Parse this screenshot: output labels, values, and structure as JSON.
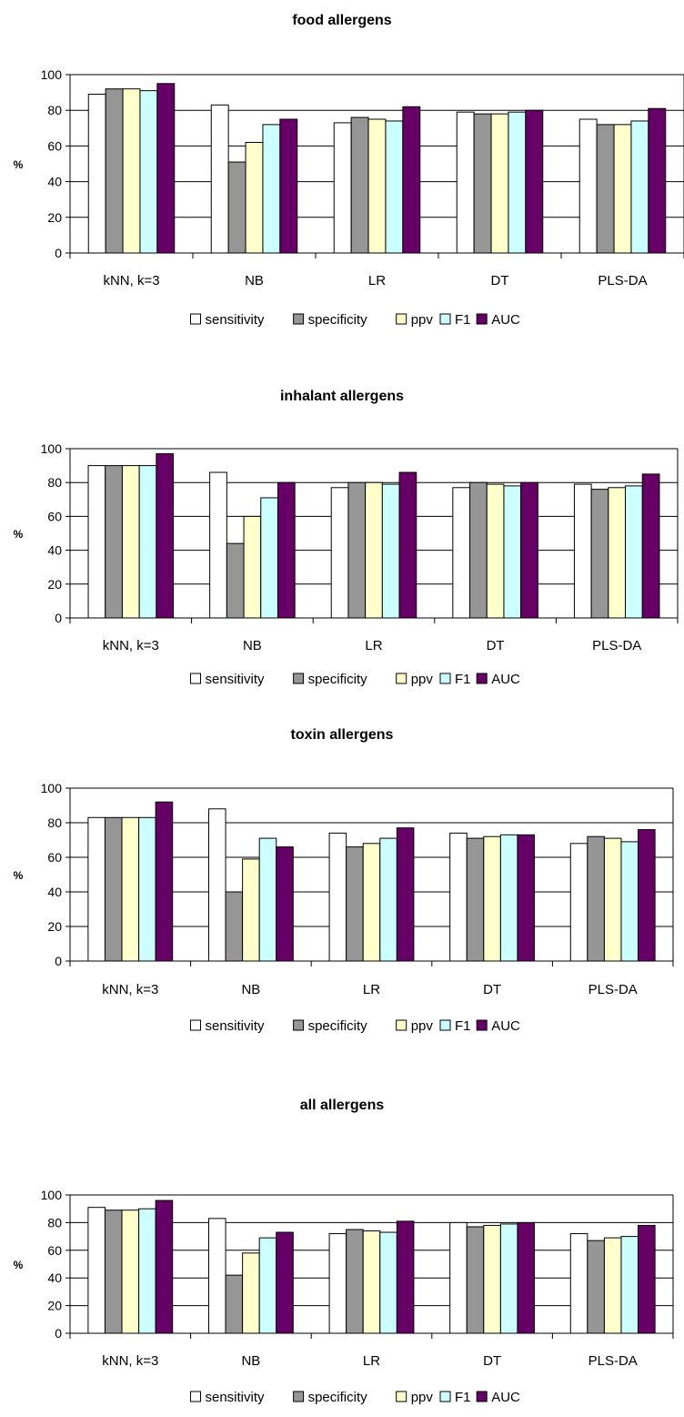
{
  "chart_data": [
    {
      "type": "bar",
      "title": "food allergens",
      "ylabel": "%",
      "ylim": [
        0,
        100
      ],
      "yticks": [
        0,
        20,
        40,
        60,
        80,
        100
      ],
      "categories": [
        "kNN, k=3",
        "NB",
        "LR",
        "DT",
        "PLS-DA"
      ],
      "series": [
        {
          "name": "sensitivity",
          "color": "#ffffff",
          "values": [
            89,
            83,
            73,
            79,
            75
          ]
        },
        {
          "name": "specificity",
          "color": "#969696",
          "values": [
            92,
            51,
            76,
            78,
            72
          ]
        },
        {
          "name": "ppv",
          "color": "#ffffcc",
          "values": [
            92,
            62,
            75,
            78,
            72
          ]
        },
        {
          "name": "F1",
          "color": "#ccffff",
          "values": [
            91,
            72,
            74,
            79,
            74
          ]
        },
        {
          "name": "AUC",
          "color": "#660066",
          "values": [
            95,
            75,
            82,
            80,
            81
          ]
        }
      ],
      "grid": true,
      "legend": "bottom"
    },
    {
      "type": "bar",
      "title": "inhalant allergens",
      "ylabel": "%",
      "ylim": [
        0,
        100
      ],
      "yticks": [
        0,
        20,
        40,
        60,
        80,
        100
      ],
      "categories": [
        "kNN, k=3",
        "NB",
        "LR",
        "DT",
        "PLS-DA"
      ],
      "series": [
        {
          "name": "sensitivity",
          "color": "#ffffff",
          "values": [
            90,
            86,
            77,
            77,
            79
          ]
        },
        {
          "name": "specificity",
          "color": "#969696",
          "values": [
            90,
            44,
            80,
            80,
            76
          ]
        },
        {
          "name": "ppv",
          "color": "#ffffcc",
          "values": [
            90,
            60,
            80,
            79,
            77
          ]
        },
        {
          "name": "F1",
          "color": "#ccffff",
          "values": [
            90,
            71,
            79,
            78,
            78
          ]
        },
        {
          "name": "AUC",
          "color": "#660066",
          "values": [
            97,
            80,
            86,
            80,
            85
          ]
        }
      ],
      "grid": true,
      "legend": "bottom"
    },
    {
      "type": "bar",
      "title": "toxin allergens",
      "ylabel": "%",
      "ylim": [
        0,
        100
      ],
      "yticks": [
        0,
        20,
        40,
        60,
        80,
        100
      ],
      "categories": [
        "kNN, k=3",
        "NB",
        "LR",
        "DT",
        "PLS-DA"
      ],
      "series": [
        {
          "name": "sensitivity",
          "color": "#ffffff",
          "values": [
            83,
            88,
            74,
            74,
            68
          ]
        },
        {
          "name": "specificity",
          "color": "#969696",
          "values": [
            83,
            40,
            66,
            71,
            72
          ]
        },
        {
          "name": "ppv",
          "color": "#ffffcc",
          "values": [
            83,
            59,
            68,
            72,
            71
          ]
        },
        {
          "name": "F1",
          "color": "#ccffff",
          "values": [
            83,
            71,
            71,
            73,
            69
          ]
        },
        {
          "name": "AUC",
          "color": "#660066",
          "values": [
            92,
            66,
            77,
            73,
            76
          ]
        }
      ],
      "grid": true,
      "legend": "bottom"
    },
    {
      "type": "bar",
      "title": "all allergens",
      "ylabel": "%",
      "ylim": [
        0,
        100
      ],
      "yticks": [
        0,
        20,
        40,
        60,
        80,
        100
      ],
      "categories": [
        "kNN, k=3",
        "NB",
        "LR",
        "DT",
        "PLS-DA"
      ],
      "series": [
        {
          "name": "sensitivity",
          "color": "#ffffff",
          "values": [
            91,
            83,
            72,
            80,
            72
          ]
        },
        {
          "name": "specificity",
          "color": "#969696",
          "values": [
            89,
            42,
            75,
            77,
            67
          ]
        },
        {
          "name": "ppv",
          "color": "#ffffcc",
          "values": [
            89,
            58,
            74,
            78,
            69
          ]
        },
        {
          "name": "F1",
          "color": "#ccffff",
          "values": [
            90,
            69,
            73,
            79,
            70
          ]
        },
        {
          "name": "AUC",
          "color": "#660066",
          "values": [
            96,
            73,
            81,
            80,
            78
          ]
        }
      ],
      "grid": true,
      "legend": "bottom"
    }
  ]
}
